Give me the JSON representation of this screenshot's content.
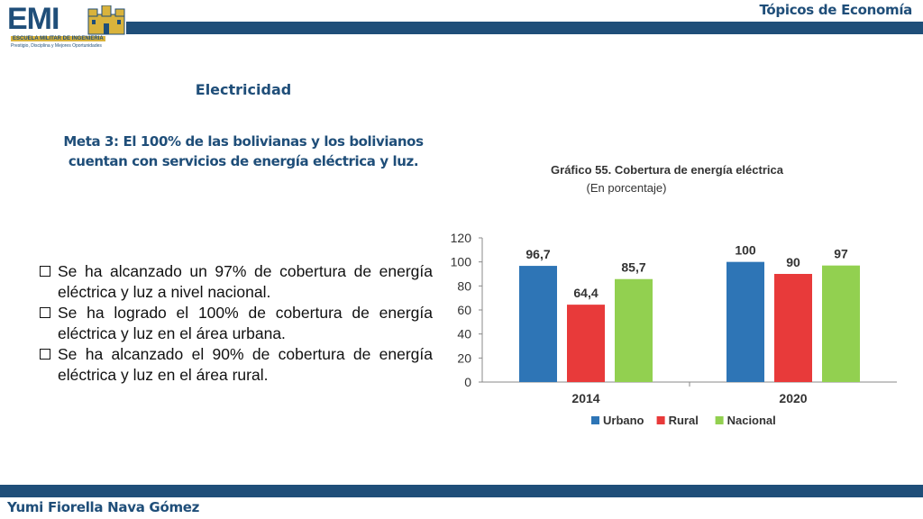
{
  "header": {
    "title": "Tópicos de Economía",
    "logo": {
      "name": "EMI",
      "line1": "ESCUELA MILITAR DE INGENIERIA",
      "line2": "Prestigio, Disciplina y Mejores Oportunidades",
      "icon": "castle-icon"
    }
  },
  "content": {
    "heading": "Electricidad",
    "goal_line1": "Meta 3: El 100% de las bolivianas y los bolivianos",
    "goal_line2": "cuentan con servicios de energía eléctrica y luz.",
    "bullets": [
      "Se ha alcanzado un 97% de cobertura de energía eléctrica y luz a nivel nacional.",
      "Se ha logrado el 100% de cobertura de energía eléctrica y luz en el área urbana.",
      "Se ha alcanzado el 90% de cobertura de energía eléctrica y luz en el área rural."
    ]
  },
  "chart_data": {
    "type": "bar",
    "title": "Gráfico 55. Cobertura de energía eléctrica",
    "subtitle": "(En porcentaje)",
    "categories": [
      "2014",
      "2020"
    ],
    "series": [
      {
        "name": "Urbano",
        "color": "#2e75b6",
        "values": [
          96.7,
          100
        ]
      },
      {
        "name": "Rural",
        "color": "#e83a3a",
        "values": [
          64.4,
          90
        ]
      },
      {
        "name": "Nacional",
        "color": "#92d050",
        "values": [
          85.7,
          97
        ]
      }
    ],
    "data_labels": [
      [
        "96,7",
        "100"
      ],
      [
        "64,4",
        "90"
      ],
      [
        "85,7",
        "97"
      ]
    ],
    "ylim": [
      0,
      120
    ],
    "yticks": [
      "0",
      "20",
      "40",
      "60",
      "80",
      "100",
      "120"
    ],
    "grid": false,
    "legend_position": "bottom"
  },
  "footer": {
    "author": "Yumi Fiorella Nava Gómez"
  }
}
